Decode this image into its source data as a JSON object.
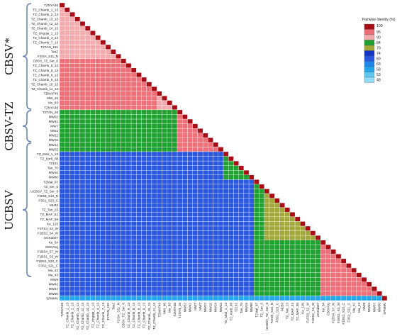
{
  "chart_data": {
    "type": "heatmap",
    "title": "",
    "legend": {
      "title": "Pairwise identity (%)",
      "placement": "top-right",
      "bins": [
        {
          "label": "100",
          "color": "#a80d16"
        },
        {
          "label": "95",
          "color": "#ee7078"
        },
        {
          "label": "90",
          "color": "#f3abae"
        },
        {
          "label": "84",
          "color": "#1fa22f"
        },
        {
          "label": "79",
          "color": "#a2a83a"
        },
        {
          "label": "74",
          "color": "#1334c8"
        },
        {
          "label": "69",
          "color": "#2a57e0"
        },
        {
          "label": "63",
          "color": "#1f86ea"
        },
        {
          "label": "58",
          "color": "#23a6ea"
        },
        {
          "label": "53",
          "color": "#5ac8f0"
        },
        {
          "label": "48",
          "color": "#93dcf6"
        }
      ]
    },
    "groups": [
      {
        "label": "CBSV*",
        "first": 0,
        "last": 22
      },
      {
        "label": "CBSV-TZ",
        "first": 23,
        "last": 29
      },
      {
        "label": "UCBSV",
        "first": 30,
        "last": 58
      }
    ],
    "labels": [
      "TZNYA36",
      "TZ_Chamb_1_13",
      "TZ_Chamb_2_13",
      "TZ_Chamb_13_13",
      "TZ_Chamb_12_13",
      "TZ_Chamb_14_13",
      "TZ_Unguja_1_13",
      "TZ_Chamb_4_13",
      "TZ_Chamb_7_13",
      "TZTAN_192",
      "TanZ",
      "F2ISA_S11_N",
      "CBSV_TZ_Ser_6",
      "TZ_Chamb_5_13",
      "TZ_Chamb_8_13",
      "TZ_Chamb_6_13",
      "TZ_Chamb_9_13",
      "TZ_Chamb_10_13",
      "TZ_Chamb_11_13",
      "TZMAF49",
      "MW_46",
      "Mo_83",
      "TZNYA38",
      "TZTAN_26",
      "MW52",
      "MW42",
      "MW7",
      "MW2",
      "MW22",
      "MW15",
      "MW14",
      "MW23",
      "TZ_Mari_1_13",
      "TZ_Kor6_08",
      "TZ191",
      "Tan_70",
      "MW16",
      "MW80",
      "TZMal_07",
      "TZ_Ser_5",
      "UCBSV_TZ_Ser_6",
      "F2ISB_S10_N",
      "F3S1_S23_C",
      "MLB3",
      "TZ_Tan_23",
      "TZ_MAF_51",
      "TZ_MAF_58",
      "Ke_125",
      "F1FS3_S2_W",
      "F1BS2_S4_W",
      "UGKab07",
      "Ke_54",
      "CBSVUg",
      "F1BS4_S7_W",
      "F1BS1_S3_W",
      "F1BS2_S20_C",
      "F3S2_S21_C",
      "Ma_42",
      "Ma_43",
      "MW8",
      "MW43",
      "MW37",
      "MW50",
      "SPMMV"
    ],
    "blocks": [
      {
        "rows": [
          0,
          22
        ],
        "cols": [
          0,
          22
        ],
        "bin": "95"
      },
      {
        "rows": [
          0,
          11
        ],
        "cols": [
          0,
          11
        ],
        "bin": "90"
      },
      {
        "rows": [
          19,
          22
        ],
        "cols": [
          19,
          22
        ],
        "bin": "90"
      },
      {
        "rows": [
          23,
          31
        ],
        "cols": [
          0,
          22
        ],
        "bin": "84"
      },
      {
        "rows": [
          23,
          31
        ],
        "cols": [
          23,
          31
        ],
        "bin": "95"
      },
      {
        "rows": [
          32,
          63
        ],
        "cols": [
          0,
          31
        ],
        "bin": "69"
      },
      {
        "rows": [
          32,
          37
        ],
        "cols": [
          32,
          37
        ],
        "bin": "84"
      },
      {
        "rows": [
          38,
          63
        ],
        "cols": [
          32,
          37
        ],
        "bin": "69"
      },
      {
        "rows": [
          38,
          62
        ],
        "cols": [
          38,
          62
        ],
        "bin": "84"
      },
      {
        "rows": [
          40,
          50
        ],
        "cols": [
          40,
          50
        ],
        "bin": "79"
      },
      {
        "rows": [
          51,
          62
        ],
        "cols": [
          51,
          62
        ],
        "bin": "95"
      },
      {
        "rows": [
          63,
          63
        ],
        "cols": [
          0,
          62
        ],
        "bin": "58"
      }
    ]
  }
}
